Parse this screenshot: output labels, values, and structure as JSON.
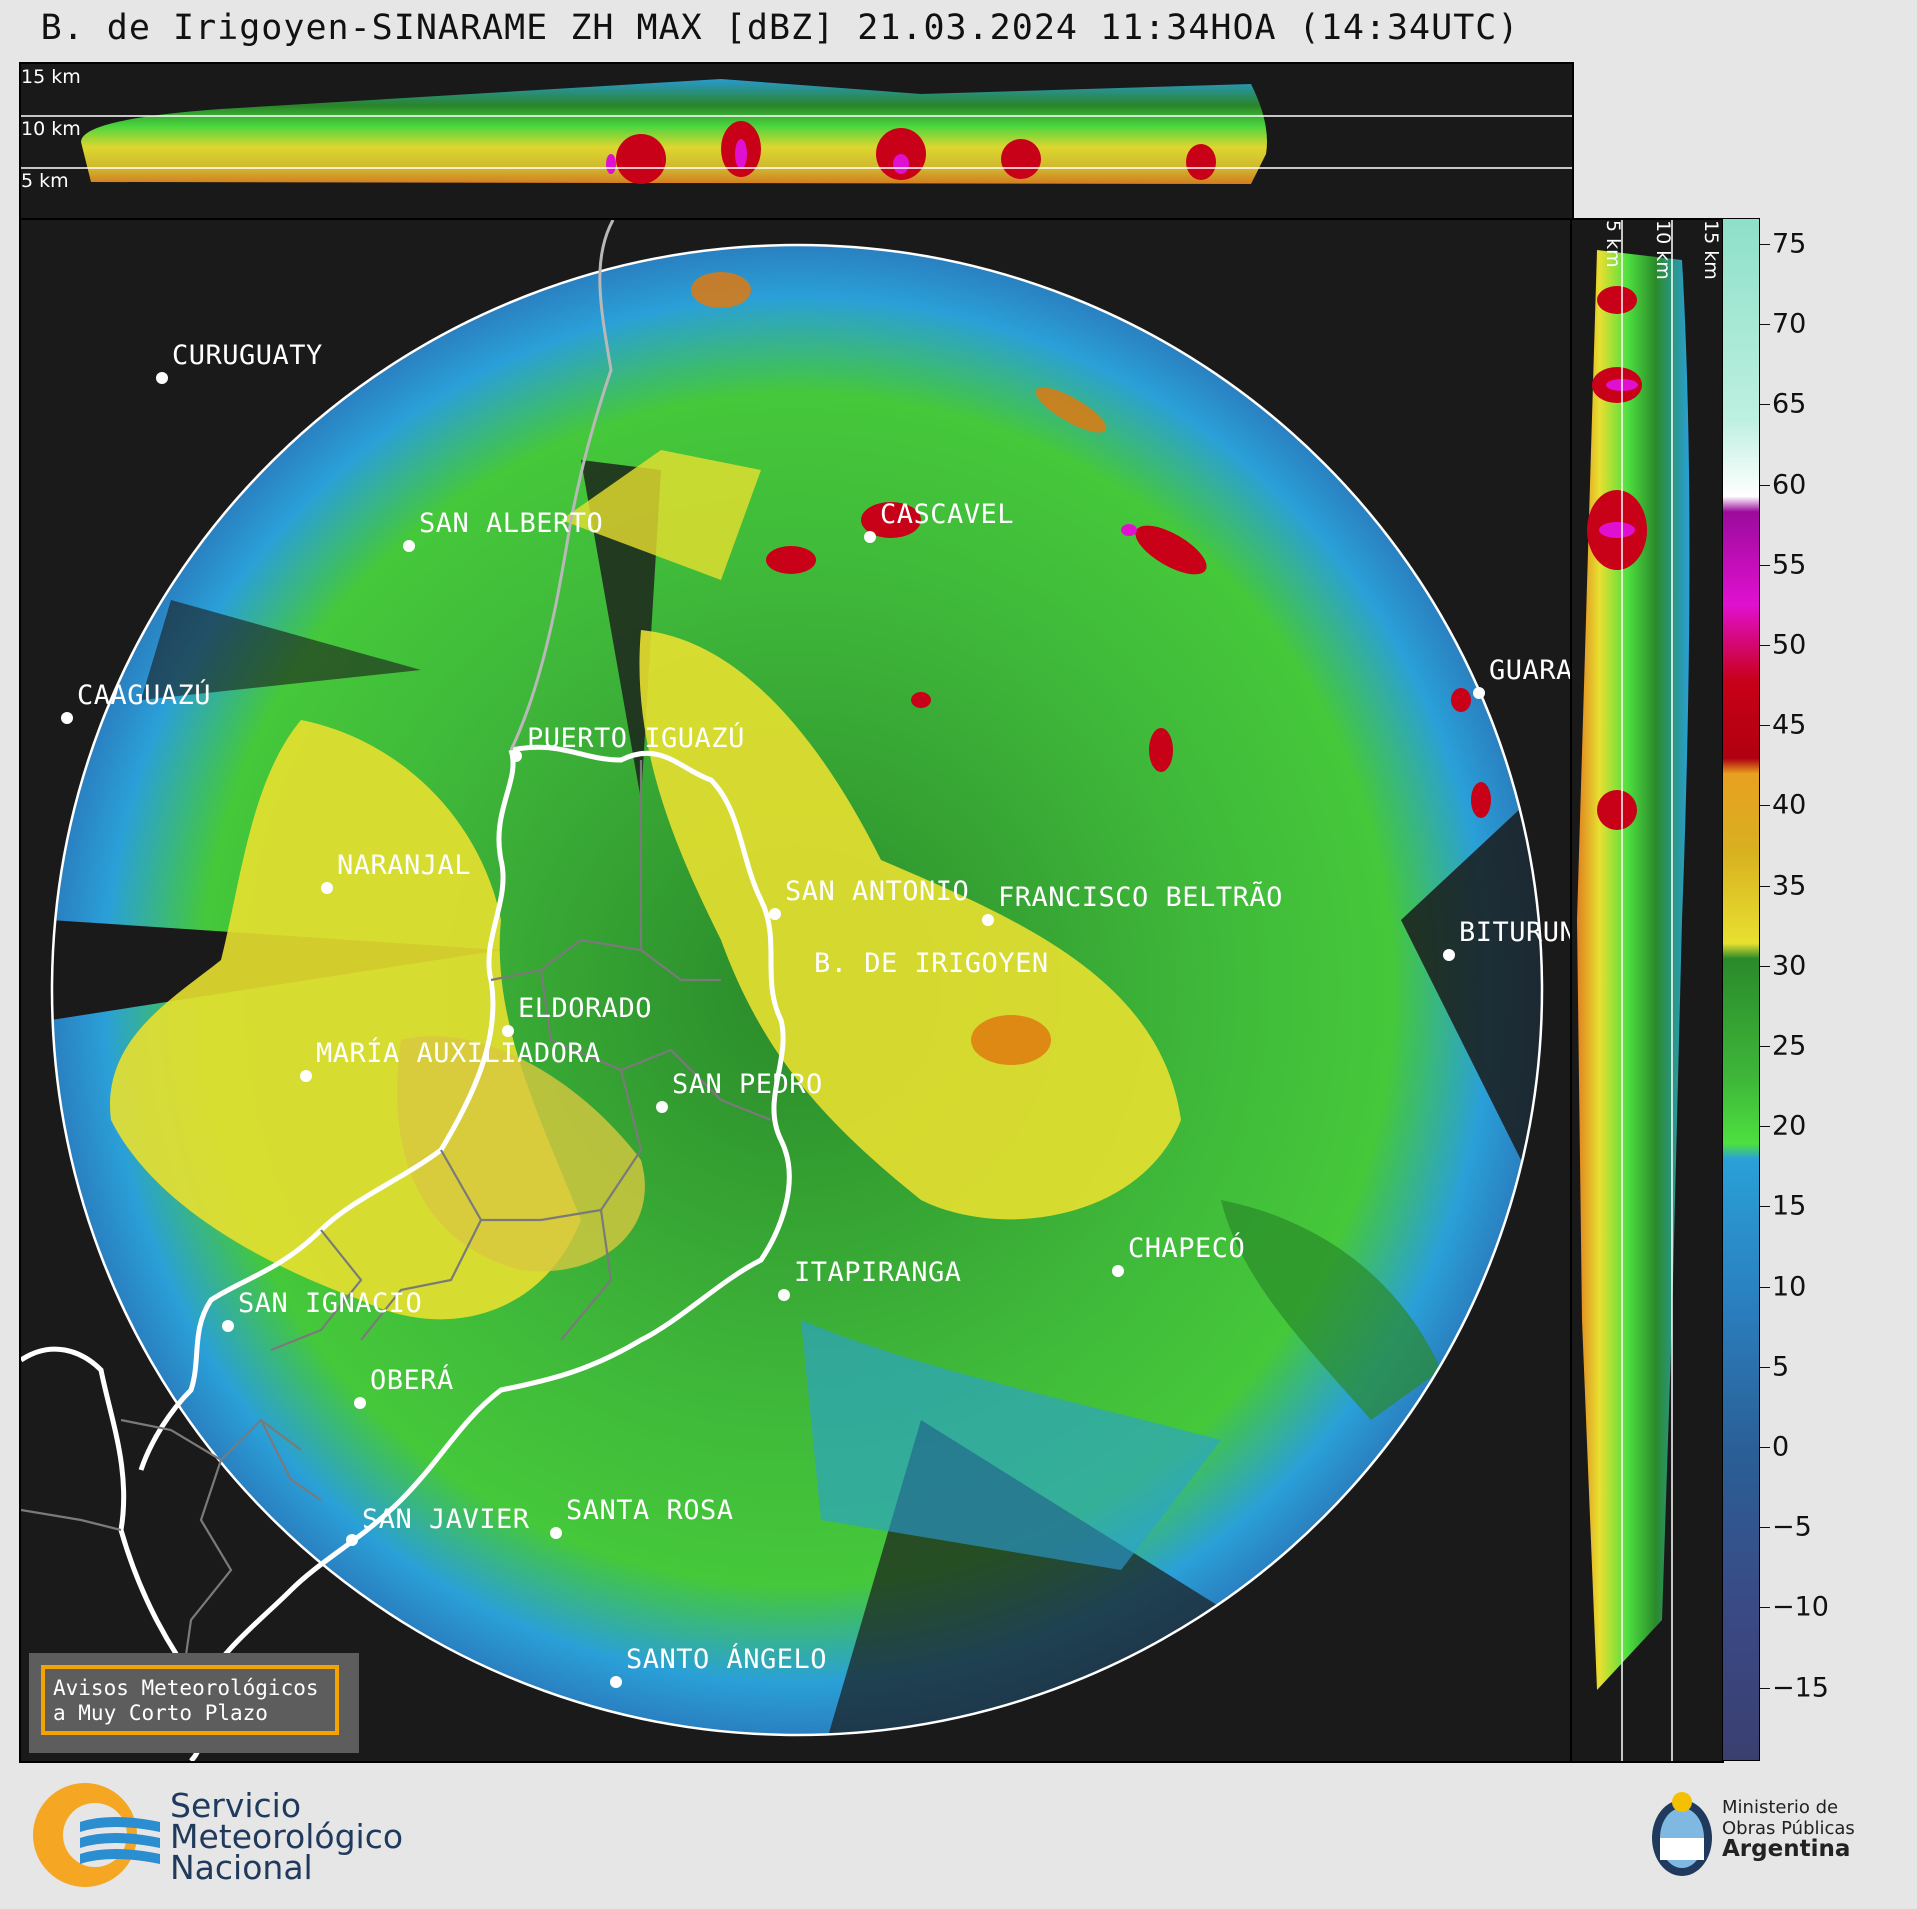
{
  "title": "B. de Irigoyen-SINARAME ZH MAX [dBZ] 21.03.2024 11:34HOA (14:34UTC)",
  "top_strip": {
    "altitudes": [
      "15 km",
      "10 km",
      "5 km"
    ]
  },
  "right_strip": {
    "altitudes": [
      "5 km",
      "10 km",
      "15 km"
    ]
  },
  "colorbar": {
    "unit": "dBZ",
    "ticks": [
      "75",
      "70",
      "65",
      "60",
      "55",
      "50",
      "45",
      "40",
      "35",
      "30",
      "25",
      "20",
      "15",
      "10",
      "5",
      "0",
      "−5",
      "−10",
      "−15"
    ],
    "colors": {
      "high": "#7fd8b8",
      "white": "#ffffff",
      "purple": "#9c0b9c",
      "magenta": "#e010d0",
      "red": "#c80018",
      "orange": "#e07a10",
      "yellow": "#e8e030",
      "green": "#2a8a2a",
      "lightgreen": "#4ee040",
      "blue": "#2aa0d8",
      "darkblue": "#2a4f86"
    }
  },
  "cities": [
    {
      "id": "curuguaty",
      "name": "CURUGUATY"
    },
    {
      "id": "san-alberto",
      "name": "SAN ALBERTO"
    },
    {
      "id": "cascavel",
      "name": "CASCAVEL"
    },
    {
      "id": "caaguazu",
      "name": "CAAGUAZÚ"
    },
    {
      "id": "guarapuava",
      "name": "GUARA"
    },
    {
      "id": "puerto-iguazu",
      "name": "PUERTO IGUAZÚ"
    },
    {
      "id": "naranjal",
      "name": "NARANJAL"
    },
    {
      "id": "san-antonio",
      "name": "SAN ANTONIO"
    },
    {
      "id": "francisco-beltrao",
      "name": "FRANCISCO BELTRÃO"
    },
    {
      "id": "bituruna",
      "name": "BITURUN"
    },
    {
      "id": "b-de-irigoyen",
      "name": "B. DE IRIGOYEN"
    },
    {
      "id": "eldorado",
      "name": "ELDORADO"
    },
    {
      "id": "maria-auxiliadora",
      "name": "MARÍA AUXILIADORA"
    },
    {
      "id": "san-pedro",
      "name": "SAN PEDRO"
    },
    {
      "id": "itapiranga",
      "name": "ITAPIRANGA"
    },
    {
      "id": "chapeco",
      "name": "CHAPECÓ"
    },
    {
      "id": "san-ignacio",
      "name": "SAN IGNACIO"
    },
    {
      "id": "obera",
      "name": "OBERÁ"
    },
    {
      "id": "san-javier",
      "name": "SAN JAVIER"
    },
    {
      "id": "santa-rosa",
      "name": "SANTA ROSA"
    },
    {
      "id": "santo-angelo",
      "name": "SANTO ÁNGELO"
    }
  ],
  "warning_box": {
    "line1": "Avisos Meteorológicos",
    "line2": "a Muy Corto Plazo"
  },
  "smn_logo": {
    "line1": "Servicio",
    "line2": "Meteorológico",
    "line3": "Nacional"
  },
  "ministry_logo": {
    "line1": "Ministerio de",
    "line2": "Obras Públicas",
    "line3": "Argentina"
  }
}
